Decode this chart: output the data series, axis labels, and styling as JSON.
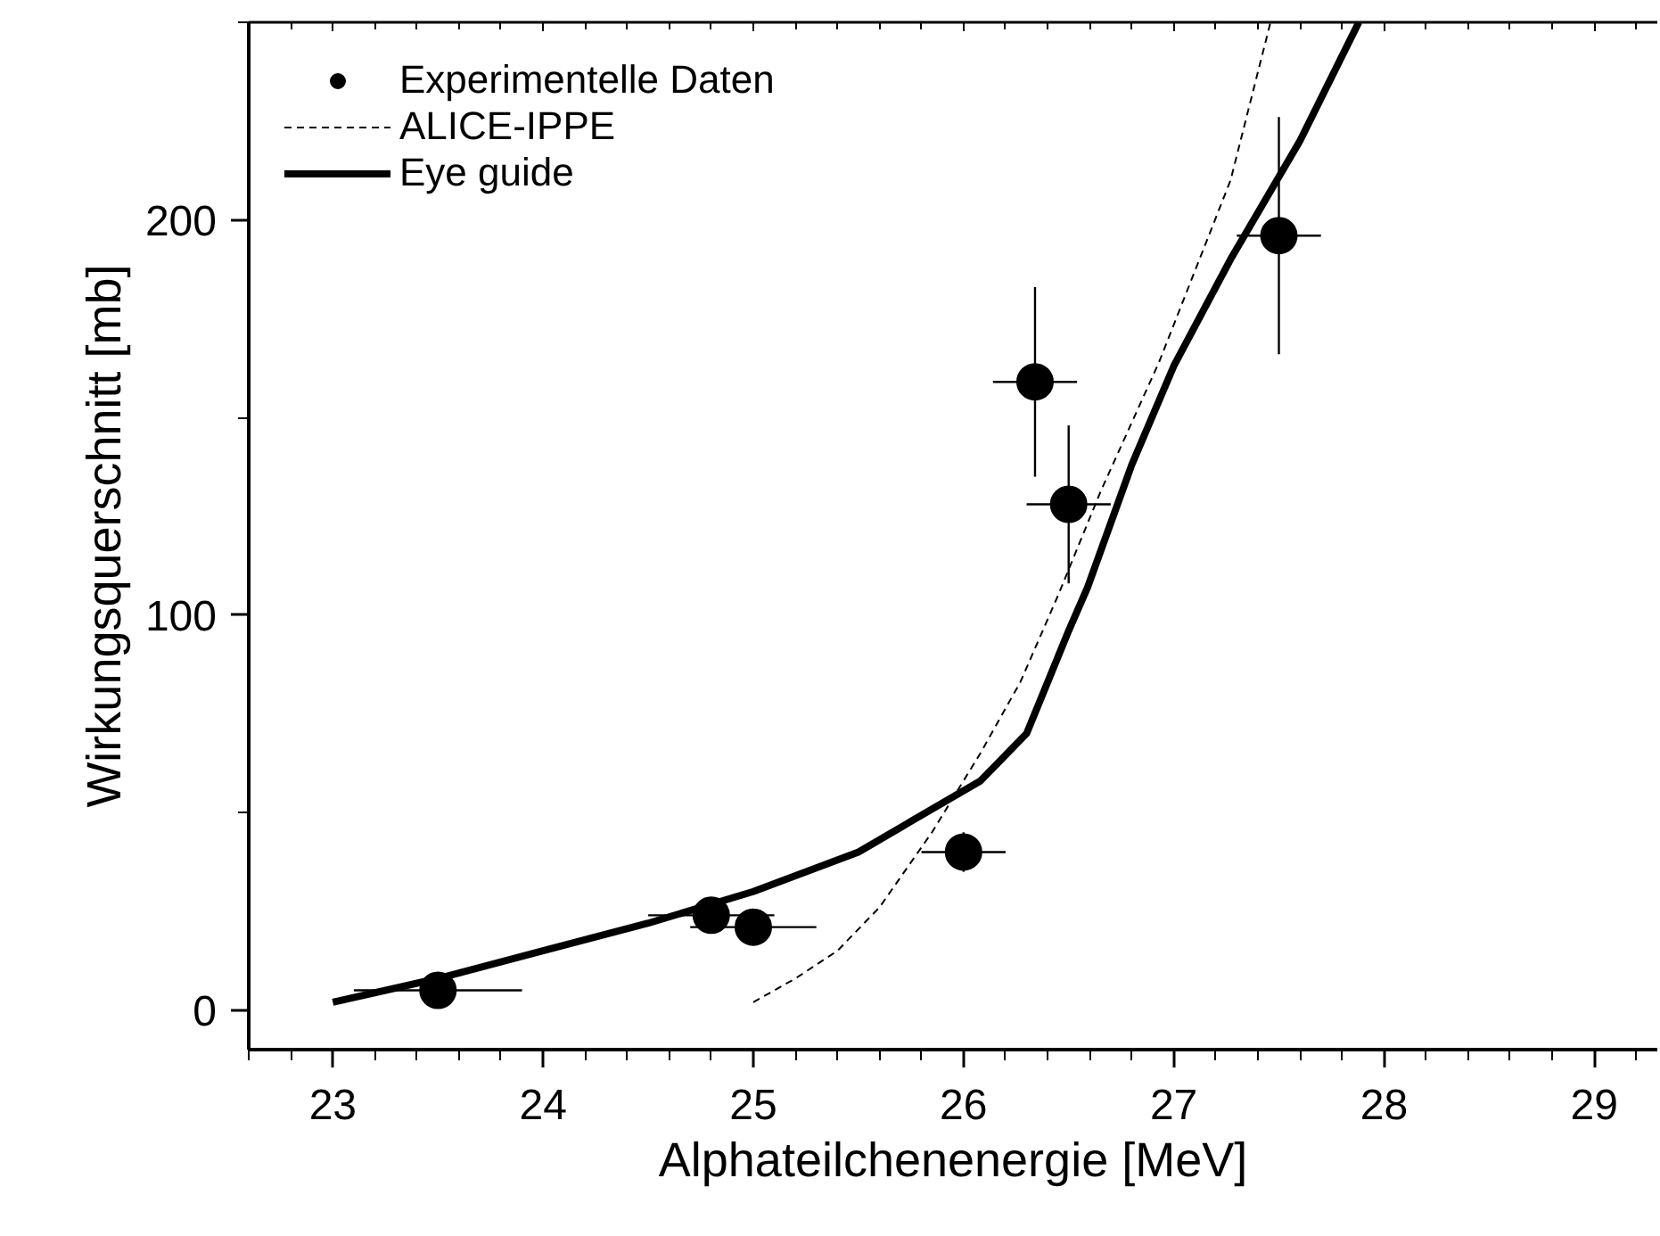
{
  "chart_data": {
    "type": "scatter",
    "xlabel": "Alphateilchenenergie [MeV]",
    "ylabel": "Wirkungsquerschnitt [mb]",
    "xlim": [
      22.6,
      29.3
    ],
    "ylim": [
      -10,
      250
    ],
    "xticks": [
      23,
      24,
      25,
      26,
      27,
      28,
      29
    ],
    "yticks": [
      0,
      100,
      200
    ],
    "legend": "top left",
    "grid": false,
    "series": [
      {
        "name": "Experimentelle Daten",
        "marker": "circle",
        "color": "#000000",
        "x": [
          23.5,
          24.8,
          25.0,
          26.0,
          26.34,
          26.5,
          27.5
        ],
        "values": [
          5,
          24,
          21,
          40,
          159,
          128,
          196
        ],
        "errors": [
          4,
          3,
          3,
          5,
          24,
          20,
          30
        ],
        "xerrors": [
          0.4,
          0.3,
          0.3,
          0.2,
          0.2,
          0.2,
          0.2
        ]
      },
      {
        "name": "ALICE-IPPE",
        "type": "line",
        "line_style": "dashed",
        "color": "#000000",
        "x": [
          25.0,
          25.2,
          25.4,
          25.6,
          25.85,
          26.08,
          26.27,
          26.45,
          26.65,
          26.93,
          27.27,
          27.46
        ],
        "values": [
          2,
          8,
          15,
          26,
          45,
          65,
          83,
          105,
          131,
          164,
          210,
          250
        ]
      },
      {
        "name": "Eye guide",
        "type": "line",
        "line_style": "solid",
        "color": "#000000",
        "x": [
          23.0,
          23.5,
          24.0,
          24.5,
          25.0,
          25.5,
          26.08,
          26.3,
          26.4,
          26.5,
          26.59,
          26.8,
          27.0,
          27.27,
          27.6,
          27.88
        ],
        "values": [
          2,
          8,
          15,
          22,
          30,
          40,
          58,
          70,
          83,
          96,
          107,
          138,
          163,
          190,
          220,
          250
        ]
      }
    ]
  }
}
